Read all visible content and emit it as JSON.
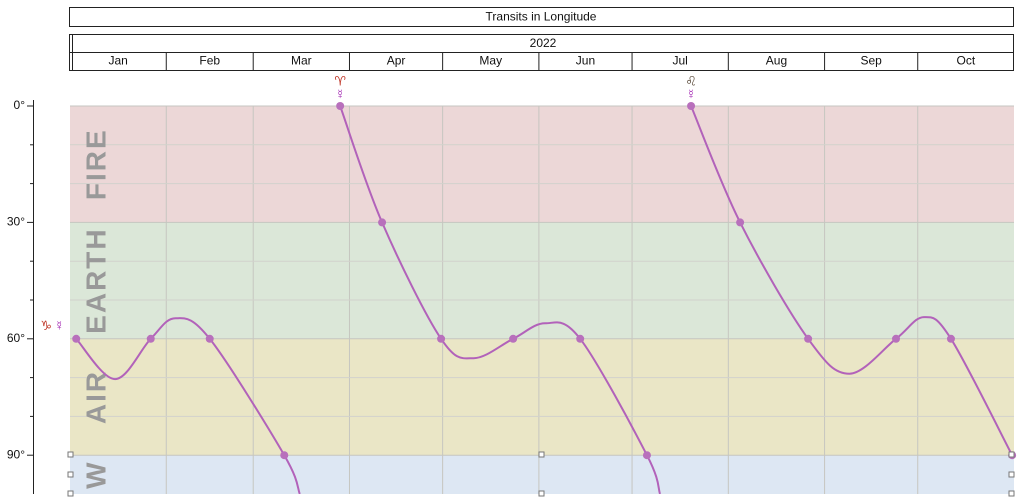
{
  "chart_data": {
    "type": "line",
    "title": "Transits in Longitude",
    "year": "2022",
    "months": [
      "Jan",
      "Feb",
      "Mar",
      "Apr",
      "May",
      "Jun",
      "Jul",
      "Aug",
      "Sep",
      "Oct"
    ],
    "month_starts": [
      0,
      31,
      59,
      90,
      120,
      151,
      181,
      212,
      243,
      273
    ],
    "xlim": [
      0,
      304
    ],
    "ylim": [
      0,
      100
    ],
    "y_inverted": true,
    "yticks": [
      {
        "value": 0,
        "label": "0°"
      },
      {
        "value": 30,
        "label": "30°"
      },
      {
        "value": 60,
        "label": "60°"
      },
      {
        "value": 90,
        "label": "90°"
      }
    ],
    "minor_yticks": [
      10,
      20,
      40,
      50,
      70,
      80
    ],
    "grid": true,
    "bands": [
      {
        "label": "FIRE",
        "from": 0,
        "to": 30,
        "color": "#ecd7d7"
      },
      {
        "label": "EARTH",
        "from": 30,
        "to": 60,
        "color": "#dbe7d8"
      },
      {
        "label": "AIR",
        "from": 60,
        "to": 90,
        "color": "#eae6c6"
      },
      {
        "label": "W",
        "from": 90,
        "to": 100,
        "color": "#dde7f3"
      }
    ],
    "series": [
      {
        "color": "#b262ba",
        "x": [
          2,
          14.5,
          26,
          34,
          45,
          69,
          74,
          null,
          87,
          100.5,
          119.5,
          130,
          142.7,
          153,
          164.3,
          185.8,
          190,
          null,
          200,
          215.8,
          237.7,
          251,
          266,
          275,
          283.7,
          303.4
        ],
        "values": [
          60,
          70.4,
          60,
          54.7,
          60,
          90,
          100,
          null,
          0,
          30,
          60,
          65,
          60,
          56,
          60,
          90,
          100,
          null,
          0,
          30,
          60,
          69,
          60,
          54.4,
          60,
          90
        ]
      },
      {
        "color": "#b870bc",
        "x": [
          2,
          26,
          45,
          69,
          87,
          100.5,
          119.5,
          142.7,
          164.3,
          185.8,
          200,
          215.8,
          237.7,
          266,
          283.7,
          303.4
        ],
        "values": [
          60,
          60,
          60,
          90,
          0,
          30,
          60,
          60,
          60,
          90,
          0,
          30,
          60,
          60,
          60,
          90
        ]
      }
    ],
    "annotations": [
      {
        "text": "♑",
        "x": 2,
        "y": 60,
        "color": "#c0392b"
      },
      {
        "text": "☿",
        "x": 2,
        "y": 60,
        "color": "#a020b0"
      },
      {
        "text": "♈",
        "x": 87,
        "y": 0,
        "color": "#c0392b"
      },
      {
        "text": "☿",
        "x": 87,
        "y": 0,
        "color": "#a020b0"
      },
      {
        "text": "♌",
        "x": 200,
        "y": 0,
        "color": "#5a4a3a"
      },
      {
        "text": "☿",
        "x": 200,
        "y": 0,
        "color": "#a020b0"
      }
    ]
  }
}
